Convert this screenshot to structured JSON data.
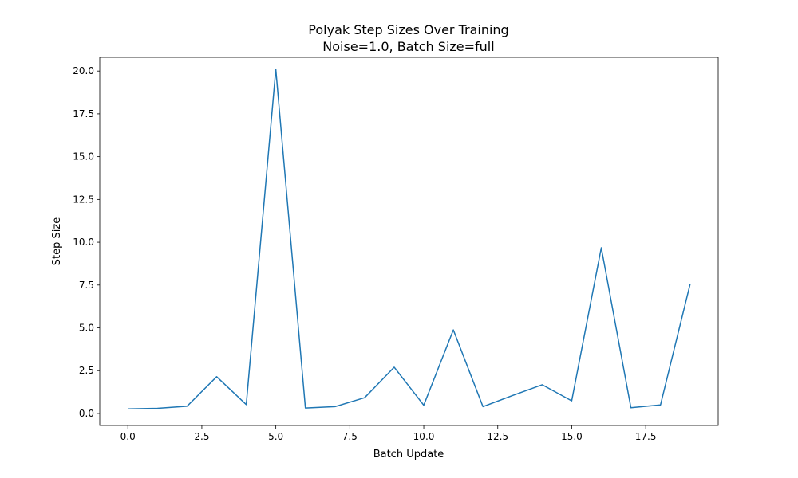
{
  "chart_data": {
    "type": "line",
    "title": "Polyak Step Sizes Over Training",
    "subtitle": "Noise=1.0, Batch Size=full",
    "xlabel": "Batch Update",
    "ylabel": "Step Size",
    "xlim": [
      -0.95,
      19.95
    ],
    "ylim": [
      -0.7,
      20.8
    ],
    "xticks": [
      0.0,
      2.5,
      5.0,
      7.5,
      10.0,
      12.5,
      15.0,
      17.5
    ],
    "xtick_labels": [
      "0.0",
      "2.5",
      "5.0",
      "7.5",
      "10.0",
      "12.5",
      "15.0",
      "17.5"
    ],
    "yticks": [
      0.0,
      2.5,
      5.0,
      7.5,
      10.0,
      12.5,
      15.0,
      17.5,
      20.0
    ],
    "ytick_labels": [
      "0.0",
      "2.5",
      "5.0",
      "7.5",
      "10.0",
      "12.5",
      "15.0",
      "17.5",
      "20.0"
    ],
    "grid": false,
    "series": [
      {
        "color": "#1f77b4",
        "x": [
          0,
          1,
          2,
          3,
          4,
          5,
          6,
          7,
          8,
          9,
          10,
          11,
          12,
          13,
          14,
          15,
          16,
          17,
          18,
          19
        ],
        "values": [
          0.27,
          0.3,
          0.42,
          2.15,
          0.52,
          20.1,
          0.32,
          0.4,
          0.92,
          2.7,
          0.48,
          4.88,
          0.4,
          1.05,
          1.68,
          0.74,
          9.68,
          0.34,
          0.5,
          7.55
        ]
      }
    ]
  }
}
